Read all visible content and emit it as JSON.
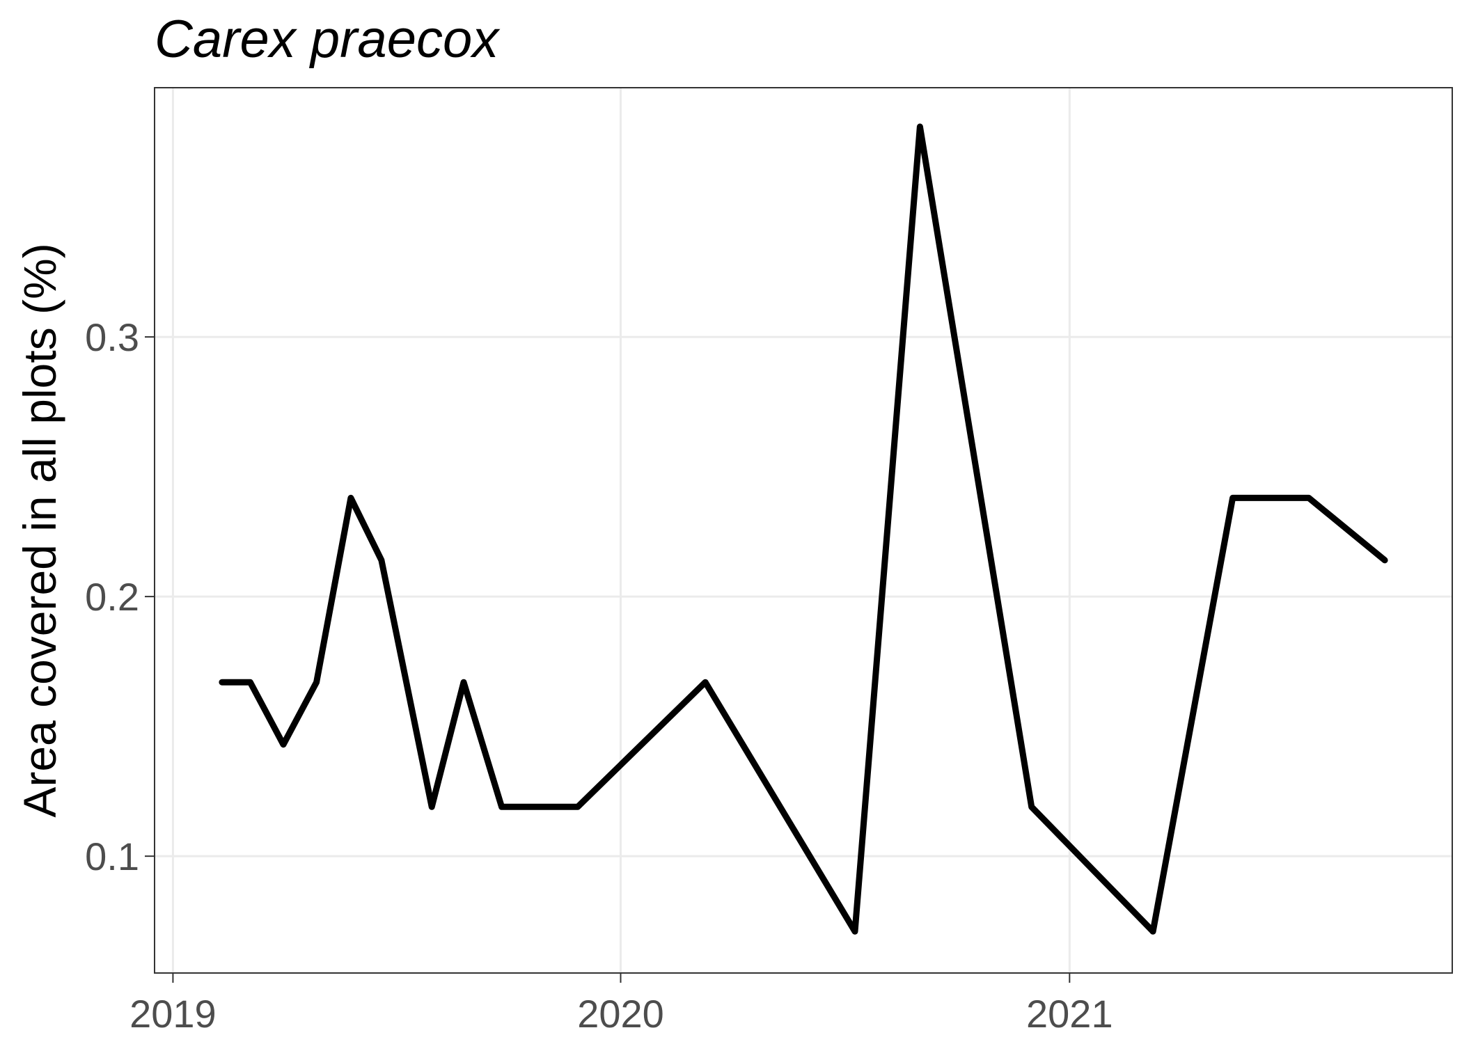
{
  "chart_data": {
    "type": "line",
    "title": "Carex praecox",
    "xlabel": "",
    "ylabel": "Area covered in all plots (%)",
    "x_ticks": [
      "2019",
      "2020",
      "2021"
    ],
    "y_ticks": [
      "0.1",
      "0.2",
      "0.3"
    ],
    "xlim": [
      "2018-12-17",
      "2021-11-09"
    ],
    "ylim": [
      0.055,
      0.396
    ],
    "grid": true,
    "legend": "none",
    "line_color": "#000000",
    "series": [
      {
        "x": [
          "2019-02-10",
          "2019-03-05",
          "2019-04-01",
          "2019-04-28",
          "2019-05-26",
          "2019-06-20",
          "2019-07-31",
          "2019-08-26",
          "2019-09-26",
          "2019-11-27",
          "2020-03-10",
          "2020-07-10",
          "2020-09-01",
          "2020-12-01",
          "2021-03-10",
          "2021-05-14",
          "2021-07-15",
          "2021-09-15"
        ],
        "y": [
          0.167,
          0.167,
          0.143,
          0.167,
          0.238,
          0.214,
          0.119,
          0.167,
          0.119,
          0.119,
          0.167,
          0.071,
          0.381,
          0.119,
          0.071,
          0.238,
          0.238,
          0.214
        ]
      }
    ]
  }
}
